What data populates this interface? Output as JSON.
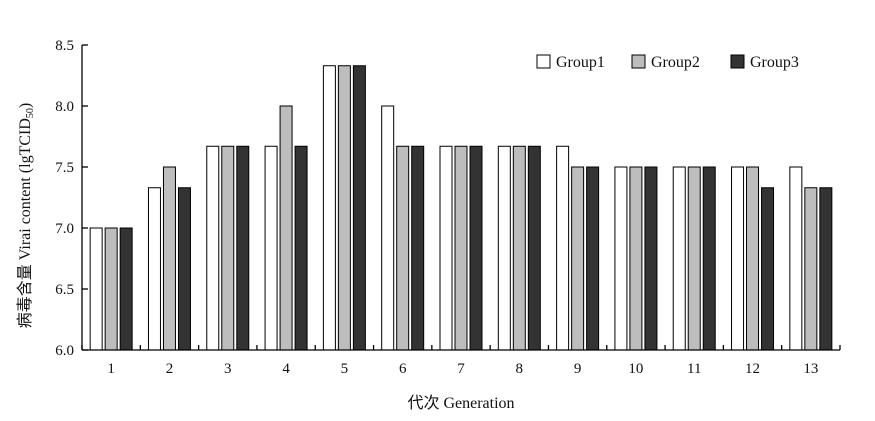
{
  "chart_data": {
    "type": "bar",
    "title": "",
    "xlabel": "代次 Generation",
    "ylabel": "病毒含量 Virai content (lgTCID",
    "ylabel_subscript": "50",
    "ylabel_suffix": ")",
    "ylim": [
      6.0,
      8.5
    ],
    "yticks": [
      "6.0",
      "6.5",
      "7.0",
      "7.5",
      "8.0",
      "8.5"
    ],
    "categories": [
      "1",
      "2",
      "3",
      "4",
      "5",
      "6",
      "7",
      "8",
      "9",
      "10",
      "11",
      "12",
      "13"
    ],
    "series": [
      {
        "name": "Group1",
        "color": "#ffffff",
        "values": [
          7.0,
          7.33,
          7.67,
          7.67,
          8.33,
          8.0,
          7.67,
          7.67,
          7.67,
          7.5,
          7.5,
          7.5,
          7.5
        ]
      },
      {
        "name": "Group2",
        "color": "#bdbdbd",
        "values": [
          7.0,
          7.5,
          7.67,
          8.0,
          8.33,
          7.67,
          7.67,
          7.67,
          7.5,
          7.5,
          7.5,
          7.5,
          7.33
        ]
      },
      {
        "name": "Group3",
        "color": "#333333",
        "values": [
          7.0,
          7.33,
          7.67,
          7.67,
          8.33,
          7.67,
          7.67,
          7.67,
          7.5,
          7.5,
          7.5,
          7.33,
          7.33
        ]
      }
    ],
    "legend_position": "top-right",
    "grid": false
  }
}
